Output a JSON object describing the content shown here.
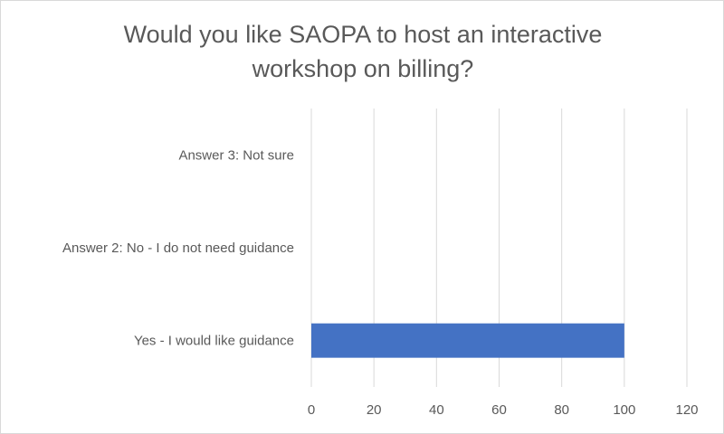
{
  "chart_data": {
    "type": "bar",
    "orientation": "horizontal",
    "title_lines": [
      "Would you like SAOPA to host an interactive",
      "workshop on billing?"
    ],
    "categories": [
      "Answer 3: Not sure",
      "Answer 2: No - I do not need guidance",
      "Yes - I would like guidance"
    ],
    "values": [
      0,
      0,
      100
    ],
    "xlim": [
      0,
      120
    ],
    "xticks": [
      0,
      20,
      40,
      60,
      80,
      100,
      120
    ],
    "grid": true,
    "legend": "none",
    "bar_color": "#4472c4",
    "grid_color": "#d9d9d9",
    "text_color": "#595959"
  }
}
